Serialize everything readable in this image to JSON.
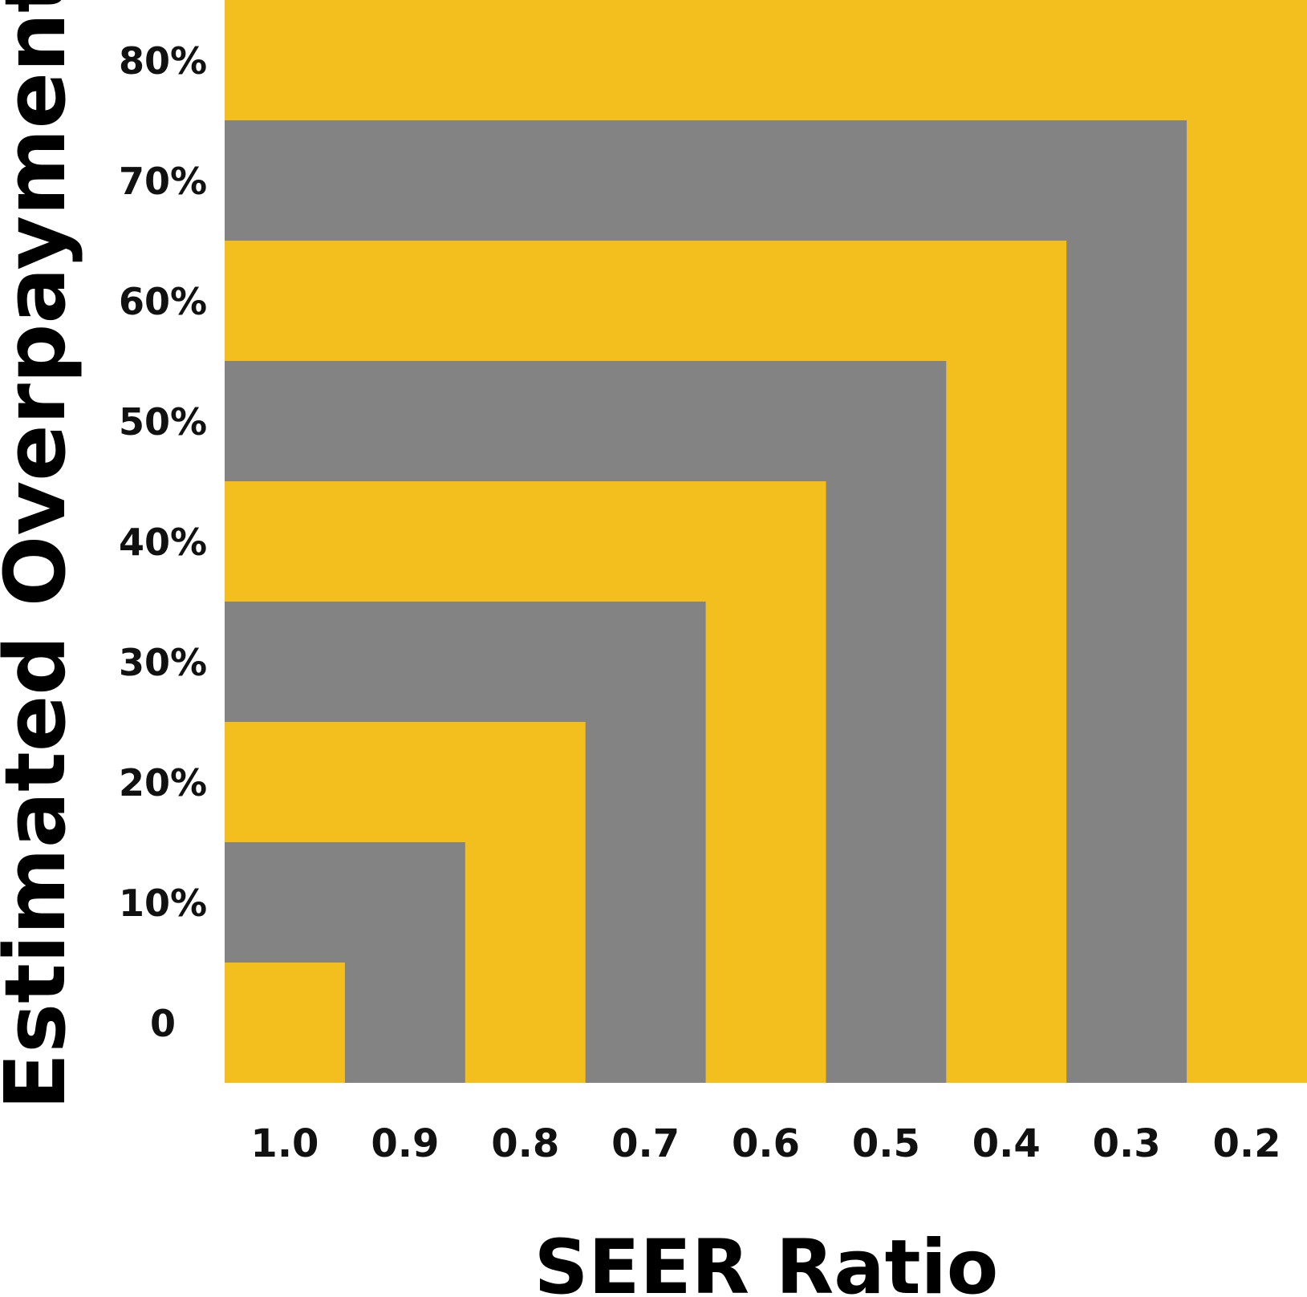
{
  "chart_data": {
    "type": "heatmap",
    "title": "",
    "xlabel": "SEER Ratio",
    "ylabel": "Estimated Overpayment",
    "x_categories": [
      "1.0",
      "0.9",
      "0.8",
      "0.7",
      "0.6",
      "0.5",
      "0.4",
      "0.3",
      "0.2"
    ],
    "y_categories": [
      "0",
      "10%",
      "20%",
      "30%",
      "40%",
      "50%",
      "60%",
      "70%",
      "80%"
    ],
    "x_values": [
      1.0,
      0.9,
      0.8,
      0.7,
      0.6,
      0.5,
      0.4,
      0.3,
      0.2
    ],
    "y_values": [
      0,
      10,
      20,
      30,
      40,
      50,
      60,
      70,
      80
    ],
    "grid": false,
    "legend": "none",
    "colors": {
      "yellow": "#F3BF1E",
      "gray": "#838383"
    },
    "bands": [
      {
        "seer_ratio": 1.0,
        "overpayment": 0,
        "color": "yellow"
      },
      {
        "seer_ratio": 0.9,
        "overpayment": 10,
        "color": "gray"
      },
      {
        "seer_ratio": 0.8,
        "overpayment": 20,
        "color": "yellow"
      },
      {
        "seer_ratio": 0.7,
        "overpayment": 30,
        "color": "gray"
      },
      {
        "seer_ratio": 0.6,
        "overpayment": 40,
        "color": "yellow"
      },
      {
        "seer_ratio": 0.5,
        "overpayment": 50,
        "color": "gray"
      },
      {
        "seer_ratio": 0.4,
        "overpayment": 60,
        "color": "yellow"
      },
      {
        "seer_ratio": 0.3,
        "overpayment": 70,
        "color": "gray"
      },
      {
        "seer_ratio": 0.2,
        "overpayment": 80,
        "color": "yellow"
      }
    ]
  }
}
